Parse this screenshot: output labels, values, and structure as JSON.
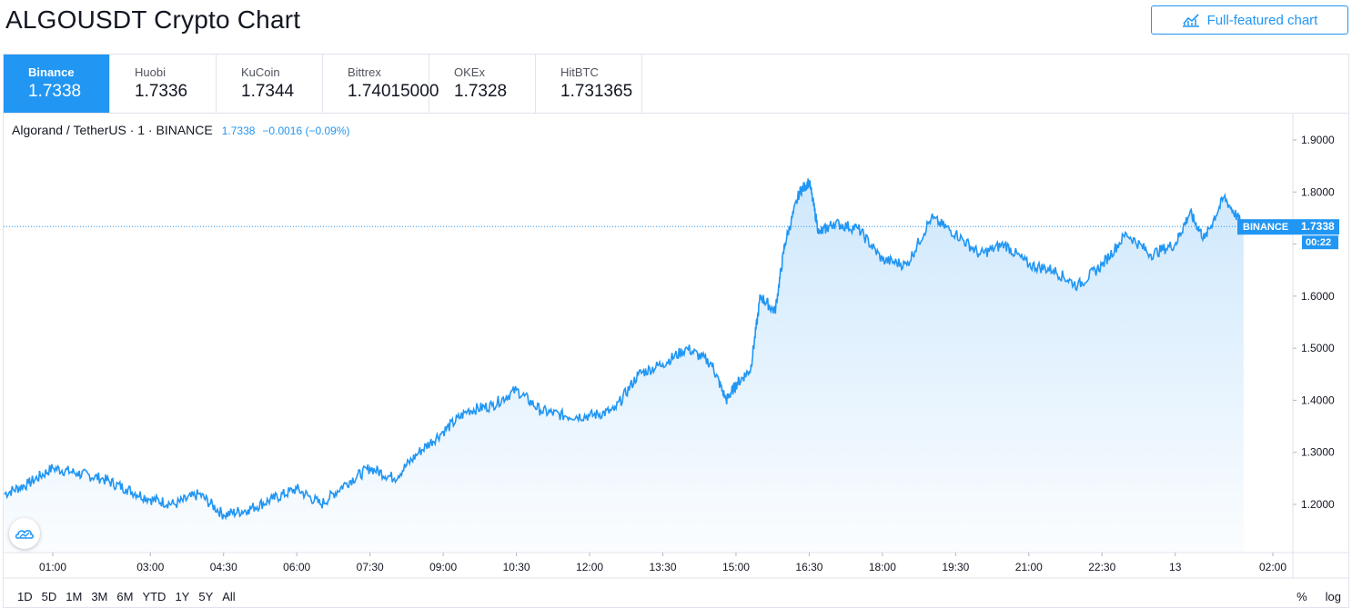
{
  "page": {
    "title": "ALGOUSDT Crypto Chart"
  },
  "toolbar": {
    "full_chart_label": "Full-featured chart",
    "full_chart_icon": "chart-line-icon"
  },
  "exchanges": [
    {
      "name": "Binance",
      "price": "1.7338",
      "active": true
    },
    {
      "name": "Huobi",
      "price": "1.7336"
    },
    {
      "name": "KuCoin",
      "price": "1.7344"
    },
    {
      "name": "Bittrex",
      "price": "1.74015000"
    },
    {
      "name": "OKEx",
      "price": "1.7328"
    },
    {
      "name": "HitBTC",
      "price": "1.731365"
    }
  ],
  "legend": {
    "symbol": "Algorand / TetherUS · 1 · BINANCE",
    "value": "1.7338",
    "change": "−0.0016 (−0.09%)"
  },
  "price_label": {
    "exchange": "BINANCE",
    "value": "1.7338",
    "countdown": "00:22"
  },
  "ranges": [
    "1D",
    "5D",
    "1M",
    "3M",
    "6M",
    "YTD",
    "1Y",
    "5Y",
    "All"
  ],
  "scale_options": {
    "percent": "%",
    "log": "log"
  },
  "colors": {
    "line": "#2196f3",
    "accent": "#2196f3",
    "border": "#e0e3eb"
  },
  "chart_data": {
    "type": "area",
    "title": "",
    "xlabel": "",
    "ylabel": "",
    "ylim": [
      1.11,
      1.93
    ],
    "y_ticks": [
      "1.9000",
      "1.8000",
      "1.7000",
      "1.6000",
      "1.5000",
      "1.4000",
      "1.3000",
      "1.2000"
    ],
    "x_ticks": [
      "01:00",
      "03:00",
      "04:30",
      "06:00",
      "07:30",
      "09:00",
      "10:30",
      "12:00",
      "13:30",
      "15:00",
      "16:30",
      "18:00",
      "19:30",
      "21:00",
      "22:30",
      "13",
      "02:00"
    ],
    "x_tick_hours": [
      1,
      3,
      4.5,
      6,
      7.5,
      9,
      10.5,
      12,
      13.5,
      15,
      16.5,
      18,
      19.5,
      21,
      22.5,
      24,
      26
    ],
    "series": [
      {
        "x": [
          0.0,
          0.5,
          1.0,
          1.5,
          2.0,
          2.5,
          3.0,
          3.5,
          4.0,
          4.5,
          5.0,
          5.5,
          6.0,
          6.5,
          7.0,
          7.5,
          8.0,
          8.5,
          9.0,
          9.5,
          10.0,
          10.5,
          11.0,
          11.5,
          12.0,
          12.5,
          13.0,
          13.5,
          14.0,
          14.5,
          14.8,
          15.0,
          15.3,
          15.5,
          15.8,
          16.0,
          16.3,
          16.5,
          16.7,
          17.0,
          17.5,
          18.0,
          18.5,
          19.0,
          19.5,
          20.0,
          20.5,
          21.0,
          21.5,
          22.0,
          22.5,
          23.0,
          23.5,
          24.0,
          24.3,
          24.6,
          25.0,
          25.4
        ],
        "values": [
          1.22,
          1.24,
          1.27,
          1.26,
          1.25,
          1.23,
          1.21,
          1.2,
          1.22,
          1.18,
          1.19,
          1.21,
          1.23,
          1.2,
          1.24,
          1.27,
          1.25,
          1.3,
          1.34,
          1.38,
          1.39,
          1.42,
          1.38,
          1.37,
          1.37,
          1.38,
          1.45,
          1.47,
          1.5,
          1.47,
          1.4,
          1.43,
          1.46,
          1.6,
          1.57,
          1.7,
          1.8,
          1.82,
          1.72,
          1.74,
          1.73,
          1.67,
          1.66,
          1.75,
          1.72,
          1.68,
          1.7,
          1.66,
          1.65,
          1.62,
          1.66,
          1.72,
          1.68,
          1.7,
          1.76,
          1.71,
          1.79,
          1.7338
        ]
      }
    ]
  }
}
